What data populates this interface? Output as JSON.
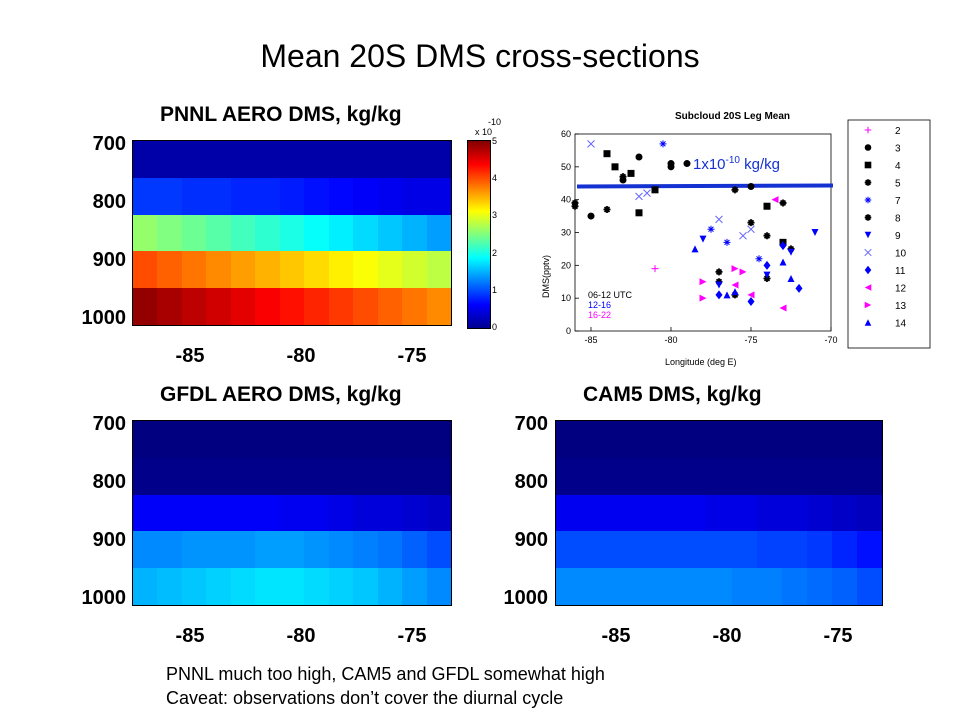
{
  "slide": {
    "title": "Mean 20S DMS cross-sections",
    "notes": [
      "PNNL much too high, CAM5 and GFDL somewhat high",
      "Caveat: observations don’t cover the diurnal cycle"
    ]
  },
  "chart_data": [
    {
      "type": "heatmap",
      "title": "PNNL AERO DMS, kg/kg",
      "x_ticks": [
        "-85",
        "-80",
        "-75"
      ],
      "y_ticks": [
        "700",
        "800",
        "900",
        "1000"
      ],
      "colorbar": {
        "multiplier": "x 10",
        "exponent": "-10",
        "ticks": [
          "0",
          "1",
          "2",
          "3",
          "4",
          "5"
        ],
        "range": [
          0,
          5
        ]
      },
      "color_scale": "jet",
      "rows_top_to_bottom": [
        [
          0.2,
          0.2,
          0.2,
          0.2,
          0.2,
          0.2,
          0.2,
          0.2,
          0.2,
          0.2,
          0.2,
          0.2,
          0.2
        ],
        [
          0.9,
          0.9,
          0.85,
          0.85,
          0.8,
          0.8,
          0.75,
          0.7,
          0.65,
          0.6,
          0.55,
          0.5,
          0.5
        ],
        [
          2.6,
          2.5,
          2.4,
          2.3,
          2.2,
          2.1,
          2.0,
          1.9,
          1.8,
          1.7,
          1.6,
          1.5,
          1.4
        ],
        [
          4.0,
          3.9,
          3.8,
          3.7,
          3.6,
          3.5,
          3.4,
          3.3,
          3.2,
          3.1,
          3.0,
          2.9,
          2.8
        ],
        [
          4.9,
          4.8,
          4.7,
          4.6,
          4.5,
          4.4,
          4.3,
          4.2,
          4.1,
          4.0,
          3.9,
          3.8,
          3.7
        ]
      ]
    },
    {
      "type": "heatmap",
      "title": "GFDL AERO DMS, kg/kg",
      "x_ticks": [
        "-85",
        "-80",
        "-75"
      ],
      "y_ticks": [
        "700",
        "800",
        "900",
        "1000"
      ],
      "color_scale": "jet",
      "rows_top_to_bottom": [
        [
          0.0,
          0.0,
          0.0,
          0.0,
          0.0,
          0.0,
          0.0,
          0.0,
          0.0,
          0.0,
          0.0,
          0.0,
          0.0
        ],
        [
          0.05,
          0.05,
          0.05,
          0.05,
          0.05,
          0.05,
          0.05,
          0.05,
          0.05,
          0.05,
          0.05,
          0.05,
          0.05
        ],
        [
          0.6,
          0.6,
          0.6,
          0.6,
          0.6,
          0.6,
          0.55,
          0.55,
          0.5,
          0.45,
          0.45,
          0.4,
          0.35
        ],
        [
          1.3,
          1.3,
          1.35,
          1.35,
          1.35,
          1.4,
          1.4,
          1.35,
          1.3,
          1.25,
          1.2,
          1.1,
          1.0
        ],
        [
          1.5,
          1.55,
          1.6,
          1.65,
          1.7,
          1.75,
          1.75,
          1.7,
          1.65,
          1.6,
          1.5,
          1.4,
          1.3
        ]
      ]
    },
    {
      "type": "heatmap",
      "title": "CAM5 DMS, kg/kg",
      "x_ticks": [
        "-85",
        "-80",
        "-75"
      ],
      "y_ticks": [
        "700",
        "800",
        "900",
        "1000"
      ],
      "color_scale": "jet",
      "rows_top_to_bottom": [
        [
          0.0,
          0.0,
          0.0,
          0.0,
          0.0,
          0.0,
          0.0,
          0.0,
          0.0,
          0.0,
          0.0,
          0.0,
          0.0
        ],
        [
          0.05,
          0.05,
          0.05,
          0.05,
          0.05,
          0.05,
          0.05,
          0.05,
          0.05,
          0.05,
          0.05,
          0.05,
          0.05
        ],
        [
          0.55,
          0.55,
          0.55,
          0.55,
          0.55,
          0.55,
          0.5,
          0.5,
          0.45,
          0.45,
          0.4,
          0.35,
          0.3
        ],
        [
          1.0,
          1.0,
          1.0,
          1.0,
          1.0,
          1.0,
          1.0,
          1.0,
          0.95,
          0.95,
          0.9,
          0.8,
          0.7
        ],
        [
          1.3,
          1.3,
          1.3,
          1.3,
          1.3,
          1.3,
          1.3,
          1.25,
          1.25,
          1.2,
          1.15,
          1.1,
          1.0
        ]
      ]
    },
    {
      "type": "scatter",
      "title": "Subcloud 20S Leg Mean",
      "xlabel": "Longitude (deg E)",
      "ylabel": "DMS(pptv)",
      "xlim": [
        -86,
        -70
      ],
      "ylim": [
        0,
        60
      ],
      "x_ticks": [
        -85,
        -80,
        -75,
        -70
      ],
      "y_ticks": [
        0,
        10,
        20,
        30,
        40,
        50,
        60
      ],
      "reference_line": {
        "y": 44,
        "color": "#1432d2",
        "label_main": "1x10",
        "label_exp": "-10",
        "label_unit": " kg/kg"
      },
      "time_legend": [
        {
          "label": "06-12 UTC",
          "color": "#000000"
        },
        {
          "label": "12-16",
          "color": "#0000ff"
        },
        {
          "label": "16-22",
          "color": "#ff00ff"
        }
      ],
      "legend": [
        "2",
        "3",
        "4",
        "5",
        "7",
        "8",
        "9",
        "10",
        "11",
        "12",
        "13",
        "14"
      ],
      "series": [
        {
          "name": "2",
          "marker": "plus",
          "color": "#ff00ff",
          "points": [
            [
              -81,
              19
            ]
          ]
        },
        {
          "name": "3",
          "marker": "circle",
          "color": "#000000",
          "points": [
            [
              -85,
              35
            ],
            [
              -83,
              46
            ],
            [
              -82,
              53
            ],
            [
              -80,
              51
            ],
            [
              -79,
              51
            ],
            [
              -80,
              50
            ],
            [
              -75,
              44
            ]
          ]
        },
        {
          "name": "4",
          "marker": "square",
          "color": "#000000",
          "points": [
            [
              -84,
              54
            ],
            [
              -83.5,
              50
            ],
            [
              -82.5,
              48
            ],
            [
              -82,
              36
            ],
            [
              -81,
              43
            ],
            [
              -74,
              38
            ],
            [
              -73,
              27
            ]
          ]
        },
        {
          "name": "5",
          "marker": "star",
          "color": "#000000",
          "points": [
            [
              -86,
              38
            ],
            [
              -84,
              37
            ],
            [
              -83,
              47
            ],
            [
              -76,
              43
            ],
            [
              -75,
              33
            ],
            [
              -73,
              39
            ],
            [
              -77,
              18
            ],
            [
              -74,
              16
            ],
            [
              -76,
              11
            ]
          ]
        },
        {
          "name": "7",
          "marker": "asterisk",
          "color": "#0000ff",
          "points": [
            [
              -80.5,
              57
            ],
            [
              -77.5,
              31
            ],
            [
              -76.5,
              27
            ],
            [
              -74.5,
              22
            ]
          ]
        },
        {
          "name": "8",
          "marker": "star",
          "color": "#000000",
          "points": [
            [
              -86,
              39
            ],
            [
              -77,
              15
            ],
            [
              -74,
              29
            ],
            [
              -72.5,
              25
            ]
          ]
        },
        {
          "name": "9",
          "marker": "tri-down",
          "color": "#0000ff",
          "points": [
            [
              -77,
              14
            ],
            [
              -74,
              17
            ],
            [
              -72.5,
              24
            ],
            [
              -71,
              30
            ],
            [
              -78,
              28
            ]
          ]
        },
        {
          "name": "10",
          "marker": "cross",
          "color": "#6666ff",
          "points": [
            [
              -85,
              57
            ],
            [
              -82,
              41
            ],
            [
              -81.5,
              42
            ],
            [
              -77,
              34
            ],
            [
              -75.5,
              29
            ],
            [
              -75,
              31
            ]
          ]
        },
        {
          "name": "11",
          "marker": "diamond",
          "color": "#0000ff",
          "points": [
            [
              -77,
              11
            ],
            [
              -75,
              9
            ],
            [
              -74,
              20
            ],
            [
              -72,
              13
            ],
            [
              -73,
              26
            ]
          ]
        },
        {
          "name": "12",
          "marker": "tri-left",
          "color": "#ff00ff",
          "points": [
            [
              -75,
              11
            ],
            [
              -73,
              7
            ],
            [
              -76,
              14
            ],
            [
              -73.5,
              40
            ]
          ]
        },
        {
          "name": "13",
          "marker": "tri-right",
          "color": "#ff00ff",
          "points": [
            [
              -78,
              15
            ],
            [
              -78,
              10
            ],
            [
              -75.5,
              18
            ],
            [
              -76,
              19
            ]
          ]
        },
        {
          "name": "14",
          "marker": "tri-up",
          "color": "#0000ff",
          "points": [
            [
              -78.5,
              25
            ],
            [
              -76.5,
              11
            ],
            [
              -76,
              12
            ],
            [
              -72.5,
              16
            ],
            [
              -73,
              21
            ]
          ]
        }
      ]
    }
  ]
}
